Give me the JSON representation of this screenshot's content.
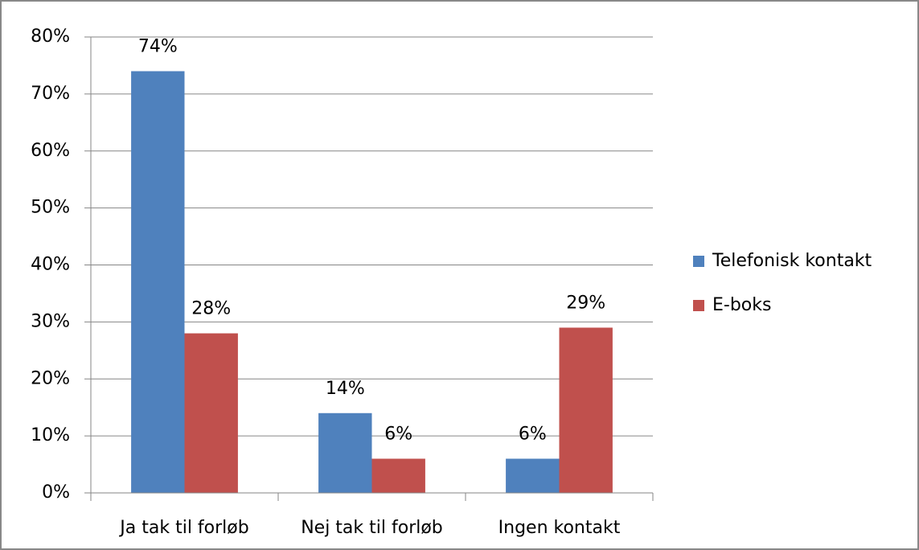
{
  "chart_data": {
    "type": "bar",
    "categories": [
      "Ja tak til forløb",
      "Nej tak til forløb",
      "Ingen kontakt"
    ],
    "series": [
      {
        "name": "Telefonisk kontakt",
        "color": "#4f81bd",
        "values": [
          74,
          14,
          6
        ],
        "value_labels": [
          "74%",
          "14%",
          "6%"
        ]
      },
      {
        "name": "E-boks",
        "color": "#c0504d",
        "values": [
          28,
          6,
          29
        ],
        "value_labels": [
          "28%",
          "6%",
          "29%"
        ]
      }
    ],
    "ylim": [
      0,
      80
    ],
    "yticks": [
      {
        "value": 0,
        "label": "0%"
      },
      {
        "value": 10,
        "label": "10%"
      },
      {
        "value": 20,
        "label": "20%"
      },
      {
        "value": 30,
        "label": "30%"
      },
      {
        "value": 40,
        "label": "40%"
      },
      {
        "value": 50,
        "label": "50%"
      },
      {
        "value": 60,
        "label": "60%"
      },
      {
        "value": 70,
        "label": "70%"
      },
      {
        "value": 80,
        "label": "80%"
      }
    ],
    "grid": true,
    "legend": "right"
  }
}
